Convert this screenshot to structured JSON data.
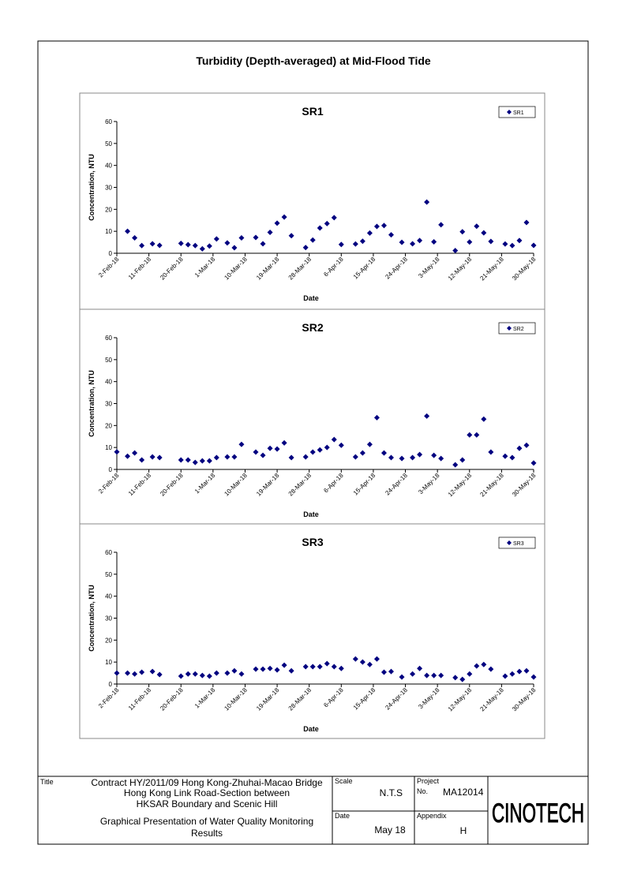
{
  "title": "Turbidity (Depth-averaged) at Mid-Flood Tide",
  "chart_data": [
    {
      "type": "scatter",
      "title": "SR1",
      "xlabel": "Date",
      "ylabel": "Concentration, NTU",
      "legend": "upper right",
      "marker": "diamond",
      "xlim": [
        "2018-02-02",
        "2018-05-30"
      ],
      "xticks": [
        {
          "value": "2018-02-02",
          "label": "2-Feb-18"
        },
        {
          "value": "2018-02-11",
          "label": "11-Feb-18"
        },
        {
          "value": "2018-02-20",
          "label": "20-Feb-18"
        },
        {
          "value": "2018-03-01",
          "label": "1-Mar-18"
        },
        {
          "value": "2018-03-10",
          "label": "10-Mar-18"
        },
        {
          "value": "2018-03-19",
          "label": "19-Mar-18"
        },
        {
          "value": "2018-03-28",
          "label": "28-Mar-18"
        },
        {
          "value": "2018-04-06",
          "label": "6-Apr-18"
        },
        {
          "value": "2018-04-15",
          "label": "15-Apr-18"
        },
        {
          "value": "2018-04-24",
          "label": "24-Apr-18"
        },
        {
          "value": "2018-05-03",
          "label": "3-May-18"
        },
        {
          "value": "2018-05-12",
          "label": "12-May-18"
        },
        {
          "value": "2018-05-21",
          "label": "21-May-18"
        },
        {
          "value": "2018-05-30",
          "label": "30-May-18"
        }
      ],
      "ylim": [
        0,
        60
      ],
      "yticks": [
        0,
        10,
        20,
        30,
        40,
        50,
        60
      ],
      "x": [
        "2018-02-05",
        "2018-02-07",
        "2018-02-09",
        "2018-02-12",
        "2018-02-14",
        "2018-02-20",
        "2018-02-22",
        "2018-02-24",
        "2018-02-26",
        "2018-02-28",
        "2018-03-02",
        "2018-03-05",
        "2018-03-07",
        "2018-03-09",
        "2018-03-13",
        "2018-03-15",
        "2018-03-17",
        "2018-03-19",
        "2018-03-21",
        "2018-03-23",
        "2018-03-27",
        "2018-03-29",
        "2018-03-31",
        "2018-04-02",
        "2018-04-04",
        "2018-04-06",
        "2018-04-10",
        "2018-04-12",
        "2018-04-14",
        "2018-04-16",
        "2018-04-18",
        "2018-04-20",
        "2018-04-23",
        "2018-04-26",
        "2018-04-28",
        "2018-04-30",
        "2018-05-02",
        "2018-05-04",
        "2018-05-08",
        "2018-05-10",
        "2018-05-12",
        "2018-05-14",
        "2018-05-16",
        "2018-05-18",
        "2018-05-22",
        "2018-05-24",
        "2018-05-26",
        "2018-05-28",
        "2018-05-30"
      ],
      "series": [
        {
          "name": "SR1",
          "color": "#000080",
          "values": [
            10,
            7,
            3.5,
            4.3,
            3.6,
            4.5,
            3.9,
            3.5,
            2,
            3.3,
            6.5,
            4.7,
            2.5,
            7,
            7.2,
            4.3,
            9.5,
            13.7,
            16.5,
            8,
            2.6,
            6,
            11.5,
            13.5,
            16.2,
            4,
            4.2,
            5.5,
            9.2,
            12.2,
            12.6,
            8.4,
            5,
            4.3,
            5.8,
            23.3,
            5.2,
            13,
            1.2,
            9.8,
            5.1,
            12.3,
            9.3,
            5.4,
            4.2,
            3.5,
            5.8,
            14,
            3.6
          ]
        }
      ]
    },
    {
      "type": "scatter",
      "title": "SR2",
      "xlabel": "Date",
      "ylabel": "Concentration, NTU",
      "legend": "upper right",
      "marker": "diamond",
      "xlim": [
        "2018-02-02",
        "2018-05-30"
      ],
      "xticks": [
        {
          "value": "2018-02-02",
          "label": "2-Feb-18"
        },
        {
          "value": "2018-02-11",
          "label": "11-Feb-18"
        },
        {
          "value": "2018-02-20",
          "label": "20-Feb-18"
        },
        {
          "value": "2018-03-01",
          "label": "1-Mar-18"
        },
        {
          "value": "2018-03-10",
          "label": "10-Mar-18"
        },
        {
          "value": "2018-03-19",
          "label": "19-Mar-18"
        },
        {
          "value": "2018-03-28",
          "label": "28-Mar-18"
        },
        {
          "value": "2018-04-06",
          "label": "6-Apr-18"
        },
        {
          "value": "2018-04-15",
          "label": "15-Apr-18"
        },
        {
          "value": "2018-04-24",
          "label": "24-Apr-18"
        },
        {
          "value": "2018-05-03",
          "label": "3-May-18"
        },
        {
          "value": "2018-05-12",
          "label": "12-May-18"
        },
        {
          "value": "2018-05-21",
          "label": "21-May-18"
        },
        {
          "value": "2018-05-30",
          "label": "30-May-18"
        }
      ],
      "ylim": [
        0,
        60
      ],
      "yticks": [
        0,
        10,
        20,
        30,
        40,
        50,
        60
      ],
      "x": [
        "2018-02-02",
        "2018-02-05",
        "2018-02-07",
        "2018-02-09",
        "2018-02-12",
        "2018-02-14",
        "2018-02-20",
        "2018-02-22",
        "2018-02-24",
        "2018-02-26",
        "2018-02-28",
        "2018-03-02",
        "2018-03-05",
        "2018-03-07",
        "2018-03-09",
        "2018-03-13",
        "2018-03-15",
        "2018-03-17",
        "2018-03-19",
        "2018-03-21",
        "2018-03-23",
        "2018-03-27",
        "2018-03-29",
        "2018-03-31",
        "2018-04-02",
        "2018-04-04",
        "2018-04-06",
        "2018-04-10",
        "2018-04-12",
        "2018-04-14",
        "2018-04-16",
        "2018-04-18",
        "2018-04-20",
        "2018-04-23",
        "2018-04-26",
        "2018-04-28",
        "2018-04-30",
        "2018-05-02",
        "2018-05-04",
        "2018-05-08",
        "2018-05-10",
        "2018-05-12",
        "2018-05-14",
        "2018-05-16",
        "2018-05-18",
        "2018-05-22",
        "2018-05-24",
        "2018-05-26",
        "2018-05-28",
        "2018-05-30"
      ],
      "series": [
        {
          "name": "SR2",
          "color": "#000080",
          "values": [
            8,
            6,
            7.5,
            4.3,
            5.7,
            5.4,
            4.3,
            4.3,
            3.2,
            3.9,
            3.9,
            5.4,
            5.7,
            5.7,
            11.4,
            7.9,
            6.4,
            9.6,
            9.3,
            12.1,
            5.4,
            5.7,
            7.9,
            8.9,
            10,
            13.6,
            11,
            5.7,
            7.5,
            11.4,
            23.6,
            7.5,
            5.4,
            5,
            5.4,
            6.8,
            24.3,
            6.4,
            5,
            2.1,
            4.3,
            15.7,
            15.7,
            22.9,
            7.9,
            6,
            5.4,
            9.6,
            11,
            2.9
          ]
        }
      ]
    },
    {
      "type": "scatter",
      "title": "SR3",
      "xlabel": "Date",
      "ylabel": "Concentration, NTU",
      "legend": "upper right",
      "marker": "diamond",
      "xlim": [
        "2018-02-02",
        "2018-05-30"
      ],
      "xticks": [
        {
          "value": "2018-02-02",
          "label": "2-Feb-18"
        },
        {
          "value": "2018-02-11",
          "label": "11-Feb-18"
        },
        {
          "value": "2018-02-20",
          "label": "20-Feb-18"
        },
        {
          "value": "2018-03-01",
          "label": "1-Mar-18"
        },
        {
          "value": "2018-03-10",
          "label": "10-Mar-18"
        },
        {
          "value": "2018-03-19",
          "label": "19-Mar-18"
        },
        {
          "value": "2018-03-28",
          "label": "28-Mar-18"
        },
        {
          "value": "2018-04-06",
          "label": "6-Apr-18"
        },
        {
          "value": "2018-04-15",
          "label": "15-Apr-18"
        },
        {
          "value": "2018-04-24",
          "label": "24-Apr-18"
        },
        {
          "value": "2018-05-03",
          "label": "3-May-18"
        },
        {
          "value": "2018-05-12",
          "label": "12-May-18"
        },
        {
          "value": "2018-05-21",
          "label": "21-May-18"
        },
        {
          "value": "2018-05-30",
          "label": "30-May-18"
        }
      ],
      "ylim": [
        0,
        60
      ],
      "yticks": [
        0,
        10,
        20,
        30,
        40,
        50,
        60
      ],
      "x": [
        "2018-02-02",
        "2018-02-05",
        "2018-02-07",
        "2018-02-09",
        "2018-02-12",
        "2018-02-14",
        "2018-02-20",
        "2018-02-22",
        "2018-02-24",
        "2018-02-26",
        "2018-02-28",
        "2018-03-02",
        "2018-03-05",
        "2018-03-07",
        "2018-03-09",
        "2018-03-13",
        "2018-03-15",
        "2018-03-17",
        "2018-03-19",
        "2018-03-21",
        "2018-03-23",
        "2018-03-27",
        "2018-03-29",
        "2018-03-31",
        "2018-04-02",
        "2018-04-04",
        "2018-04-06",
        "2018-04-10",
        "2018-04-12",
        "2018-04-14",
        "2018-04-16",
        "2018-04-18",
        "2018-04-20",
        "2018-04-23",
        "2018-04-26",
        "2018-04-28",
        "2018-04-30",
        "2018-05-02",
        "2018-05-04",
        "2018-05-08",
        "2018-05-10",
        "2018-05-12",
        "2018-05-14",
        "2018-05-16",
        "2018-05-18",
        "2018-05-22",
        "2018-05-24",
        "2018-05-26",
        "2018-05-28",
        "2018-05-30"
      ],
      "series": [
        {
          "name": "SR3",
          "color": "#000080",
          "values": [
            5,
            5,
            4.6,
            5.4,
            5.7,
            4.3,
            3.6,
            4.6,
            4.6,
            3.9,
            3.6,
            5,
            5,
            6,
            4.6,
            6.8,
            6.8,
            7.1,
            6.4,
            8.6,
            6,
            7.9,
            7.9,
            7.9,
            9.3,
            7.9,
            7.1,
            11.4,
            10,
            8.9,
            11.4,
            5.4,
            5.7,
            3.2,
            4.6,
            7.1,
            3.9,
            3.9,
            3.9,
            2.9,
            2.1,
            4.6,
            8.2,
            8.9,
            6.8,
            3.6,
            4.6,
            5.7,
            6,
            3.2
          ]
        }
      ]
    }
  ],
  "title_block": {
    "title_label": "Title",
    "title_lines": [
      "Contract HY/2011/09 Hong Kong-Zhuhai-Macao Bridge",
      "Hong Kong Link Road-Section between",
      "HKSAR Boundary and Scenic Hill"
    ],
    "subtitle_lines": [
      "Graphical Presentation of Water Quality Monitoring",
      "Results"
    ],
    "scale_label": "Scale",
    "scale": "N.T.S",
    "project_label": "Project",
    "no_label": "No.",
    "project_no": "MA12014",
    "date_label": "Date",
    "date": "May 18",
    "appendix_label": "Appendix",
    "appendix": "H",
    "logo": "CINOTECH"
  }
}
